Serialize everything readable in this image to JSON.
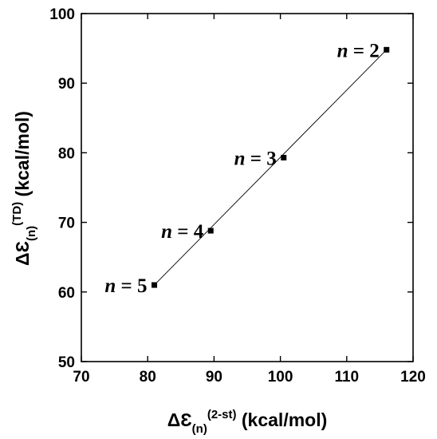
{
  "chart_data": {
    "type": "scatter",
    "xlim": [
      70,
      120
    ],
    "ylim": [
      50,
      100
    ],
    "x_ticks": [
      "70",
      "80",
      "90",
      "100",
      "110",
      "120"
    ],
    "y_ticks": [
      "50",
      "60",
      "70",
      "80",
      "90",
      "100"
    ],
    "xlabel": {
      "prefix": "ΔƐ",
      "sub": "(n)",
      "sup": "(2-st)",
      "suffix": " (kcal/mol)"
    },
    "ylabel": {
      "prefix": "ΔƐ",
      "sub": "(n)",
      "sup": "(TD)",
      "suffix": " (kcal/mol)"
    },
    "series": [
      {
        "points": [
          {
            "x": 81.0,
            "y": 61.0
          },
          {
            "x": 89.5,
            "y": 68.8
          },
          {
            "x": 100.5,
            "y": 79.3
          },
          {
            "x": 116.0,
            "y": 94.8
          }
        ],
        "marker": "square",
        "color": "#000000"
      }
    ],
    "fit_line": {
      "x": [
        81.0,
        116.0
      ],
      "y": [
        61.0,
        94.8
      ],
      "color": "#000000"
    },
    "annotations": [
      {
        "var": "n",
        "rest": " = 5",
        "x": 81.0,
        "y": 61.0,
        "anchor": "left"
      },
      {
        "var": "n",
        "rest": " = 4",
        "x": 89.5,
        "y": 68.8,
        "anchor": "left"
      },
      {
        "var": "n",
        "rest": " = 3",
        "x": 100.5,
        "y": 79.3,
        "anchor": "left"
      },
      {
        "var": "n",
        "rest": " = 2",
        "x": 116.0,
        "y": 94.8,
        "anchor": "left"
      }
    ],
    "grid": false,
    "legend": "none"
  }
}
